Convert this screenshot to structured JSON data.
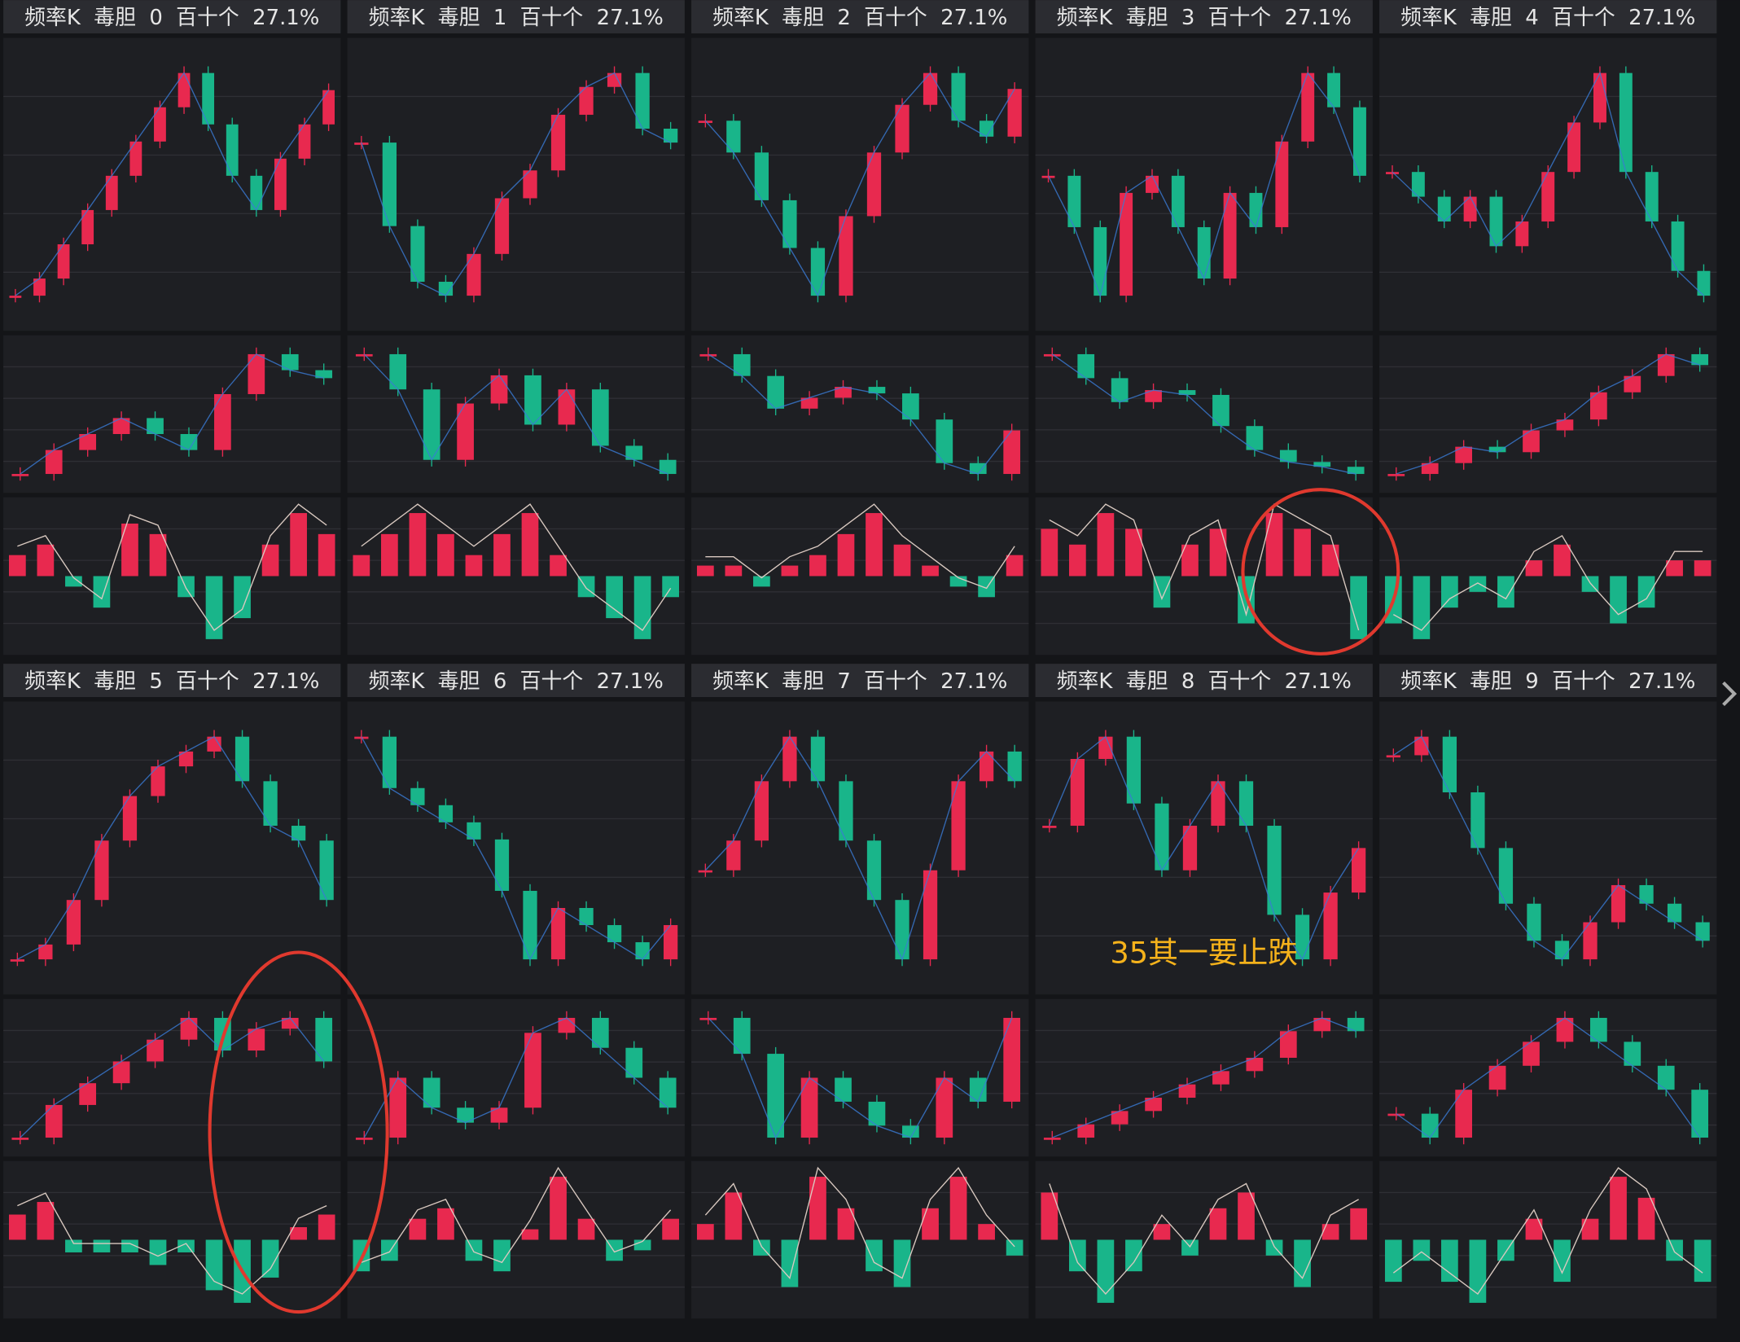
{
  "panels": [
    {
      "header": {
        "label": "频率K",
        "name": "毒胆",
        "index": 0,
        "unit": "百十个",
        "pct": "27.1%"
      },
      "price": [
        20,
        25,
        35,
        45,
        55,
        65,
        75,
        85,
        70,
        55,
        45,
        60,
        70,
        80
      ],
      "sub": [
        45,
        48,
        50,
        52,
        50,
        48,
        55,
        60,
        58,
        57
      ],
      "osc": [
        2,
        3,
        -1,
        -3,
        5,
        4,
        -2,
        -6,
        -4,
        3,
        6,
        4
      ]
    },
    {
      "header": {
        "label": "频率K",
        "name": "毒胆",
        "index": 1,
        "unit": "百十个",
        "pct": "27.1%"
      },
      "price": [
        70,
        40,
        20,
        15,
        30,
        50,
        60,
        80,
        90,
        95,
        75,
        70
      ],
      "sub": [
        55,
        50,
        40,
        48,
        52,
        45,
        50,
        42,
        40,
        38
      ],
      "osc": [
        1,
        2,
        3,
        2,
        1,
        2,
        3,
        1,
        -1,
        -2,
        -3,
        -1
      ]
    },
    {
      "header": {
        "label": "频率K",
        "name": "毒胆",
        "index": 2,
        "unit": "百十个",
        "pct": "27.1%"
      },
      "price": [
        70,
        60,
        45,
        30,
        15,
        40,
        60,
        75,
        85,
        70,
        65,
        80
      ],
      "sub": [
        80,
        70,
        55,
        60,
        65,
        62,
        50,
        30,
        25,
        45
      ],
      "osc": [
        1,
        1,
        -1,
        1,
        2,
        4,
        6,
        3,
        1,
        -1,
        -2,
        2
      ]
    },
    {
      "header": {
        "label": "频率K",
        "name": "毒胆",
        "index": 3,
        "unit": "百十个",
        "pct": "27.1%"
      },
      "price": [
        60,
        45,
        25,
        55,
        60,
        45,
        30,
        55,
        45,
        70,
        90,
        80,
        60
      ],
      "sub": [
        75,
        65,
        55,
        60,
        58,
        45,
        35,
        30,
        28,
        25
      ],
      "osc": [
        3,
        2,
        4,
        3,
        -2,
        2,
        3,
        -3,
        4,
        3,
        2,
        -4
      ]
    },
    {
      "header": {
        "label": "频率K",
        "name": "毒胆",
        "index": 4,
        "unit": "百十个",
        "pct": "27.1%"
      },
      "price": [
        75,
        70,
        65,
        70,
        60,
        65,
        75,
        85,
        95,
        75,
        65,
        55,
        50
      ],
      "sub": [
        30,
        32,
        35,
        34,
        38,
        40,
        45,
        48,
        52,
        50
      ],
      "osc": [
        -3,
        -4,
        -2,
        -1,
        -2,
        1,
        2,
        -1,
        -3,
        -2,
        1,
        1
      ]
    },
    {
      "header": {
        "label": "频率K",
        "name": "毒胆",
        "index": 5,
        "unit": "百十个",
        "pct": "27.1%"
      },
      "price": [
        20,
        25,
        40,
        60,
        75,
        85,
        90,
        95,
        80,
        65,
        60,
        40
      ],
      "sub": [
        20,
        35,
        45,
        55,
        65,
        75,
        60,
        70,
        75,
        55
      ],
      "osc": [
        2,
        3,
        -1,
        -1,
        -1,
        -2,
        -1,
        -4,
        -5,
        -3,
        1,
        2
      ]
    },
    {
      "header": {
        "label": "频率K",
        "name": "毒胆",
        "index": 6,
        "unit": "百十个",
        "pct": "27.1%"
      },
      "price": [
        85,
        70,
        65,
        60,
        55,
        40,
        20,
        35,
        30,
        25,
        20,
        30
      ],
      "sub": [
        20,
        40,
        30,
        25,
        30,
        55,
        60,
        50,
        40,
        30
      ],
      "osc": [
        -3,
        -2,
        2,
        3,
        -2,
        -3,
        1,
        6,
        2,
        -2,
        -1,
        2
      ]
    },
    {
      "header": {
        "label": "频率K",
        "name": "毒胆",
        "index": 7,
        "unit": "百十个",
        "pct": "27.1%"
      },
      "price": [
        40,
        50,
        70,
        85,
        70,
        50,
        30,
        10,
        40,
        70,
        80,
        70
      ],
      "sub": [
        55,
        52,
        45,
        50,
        48,
        46,
        45,
        50,
        48,
        55
      ],
      "osc": [
        1,
        3,
        -1,
        -3,
        4,
        2,
        -2,
        -3,
        2,
        4,
        1,
        -1
      ]
    },
    {
      "header": {
        "label": "频率K",
        "name": "毒胆",
        "index": 8,
        "unit": "百十个",
        "pct": "27.1%"
      },
      "price": [
        70,
        85,
        90,
        75,
        60,
        70,
        80,
        70,
        50,
        40,
        55,
        65
      ],
      "sub": [
        30,
        35,
        40,
        45,
        50,
        55,
        60,
        70,
        75,
        70
      ],
      "osc": [
        3,
        -2,
        -4,
        -2,
        1,
        -1,
        2,
        3,
        -1,
        -3,
        1,
        2
      ]
    },
    {
      "header": {
        "label": "频率K",
        "name": "毒胆",
        "index": 9,
        "unit": "百十个",
        "pct": "27.1%"
      },
      "price": [
        75,
        80,
        65,
        50,
        35,
        25,
        20,
        30,
        40,
        35,
        30,
        25
      ],
      "sub": [
        45,
        40,
        50,
        55,
        60,
        65,
        60,
        55,
        50,
        40
      ],
      "osc": [
        -2,
        -1,
        -2,
        -3,
        -1,
        1,
        -2,
        1,
        3,
        2,
        -1,
        -2
      ]
    }
  ],
  "annotation": "35其一要止跌"
}
